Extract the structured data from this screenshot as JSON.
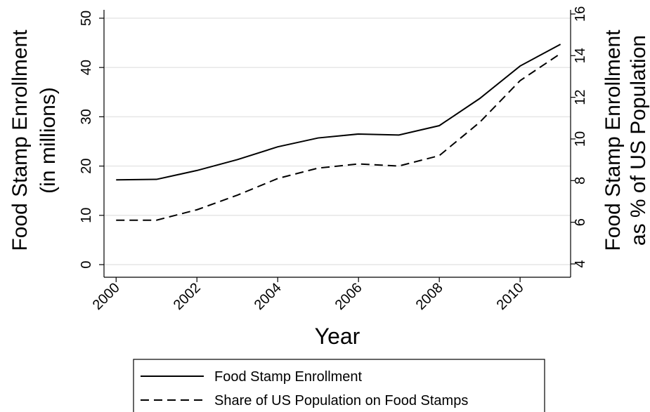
{
  "chart_data": {
    "type": "line",
    "xlabel": "Year",
    "ylabel": [
      "Food Stamp Enrollment",
      "(in millions)"
    ],
    "y2label": [
      "Food Stamp Enrollment",
      "as % of US Population"
    ],
    "x": [
      2000,
      2001,
      2002,
      2003,
      2004,
      2005,
      2006,
      2007,
      2008,
      2009,
      2010,
      2011
    ],
    "series": [
      {
        "name": "Food Stamp Enrollment",
        "color": "#000000",
        "linestyle": "solid",
        "values": [
          17.2,
          17.3,
          19.1,
          21.3,
          23.9,
          25.7,
          26.5,
          26.3,
          28.2,
          33.7,
          40.3,
          44.7
        ]
      },
      {
        "name": "Share of US Population on Food Stamps",
        "color": "#000000",
        "linestyle": "dashed",
        "axis": "y2",
        "values": [
          6.1,
          6.1,
          6.6,
          7.3,
          8.1,
          8.6,
          8.8,
          8.7,
          9.2,
          10.8,
          12.8,
          14.1
        ]
      }
    ],
    "xlim": [
      1999.7,
      2011.25
    ],
    "xticks": [
      2000,
      2002,
      2004,
      2006,
      2008,
      2010
    ],
    "ylim": [
      -2.56,
      51.7
    ],
    "yticks": [
      0,
      10,
      20,
      30,
      40,
      50
    ],
    "y2lim": [
      3.36,
      16.2
    ],
    "y2ticks": [
      4,
      6,
      8,
      10,
      12,
      14,
      16
    ],
    "grid": true,
    "legend": "bottom"
  }
}
